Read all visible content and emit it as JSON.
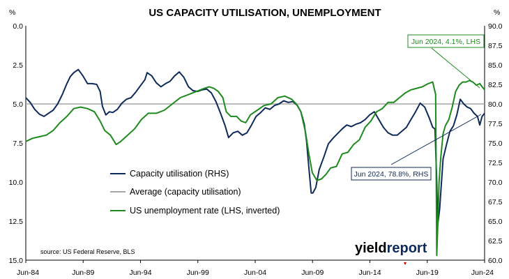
{
  "chart_data": {
    "type": "line",
    "title": "US CAPACITY UTILISATION, UNEMPLOYMENT",
    "left_axis_unit": "%",
    "right_axis_unit": "%",
    "left_axis": {
      "ylim": [
        0,
        15
      ],
      "inverted": true,
      "ticks": [
        "0.0",
        "2.5",
        "5.0",
        "7.5",
        "10.0",
        "12.5",
        "15.0"
      ]
    },
    "right_axis": {
      "ylim": [
        60,
        90
      ],
      "ticks": [
        "90.0",
        "87.5",
        "85.0",
        "82.5",
        "80.0",
        "77.5",
        "75.0",
        "72.5",
        "70.0",
        "67.5",
        "65.0",
        "62.5",
        "60.0"
      ]
    },
    "x_axis": {
      "range": [
        1984.42,
        2024.42
      ],
      "tick_labels": [
        "Jun-84",
        "Jun-89",
        "Jun-94",
        "Jun-99",
        "Jun-04",
        "Jun-09",
        "Jun-14",
        "Jun-19",
        "Jun-24"
      ]
    },
    "grid": false,
    "legend_placement": "lower-left",
    "source": "source: US Federal Reserve, BLS",
    "logo": "yieldreport",
    "series": [
      {
        "name": "Capacity utilisation (RHS)",
        "axis": "right",
        "color": "#0e2a5a",
        "x": [
          1984.42,
          1984.8,
          1985.2,
          1985.6,
          1986.0,
          1986.4,
          1986.8,
          1987.2,
          1987.6,
          1988.0,
          1988.3,
          1988.6,
          1989.0,
          1989.4,
          1989.8,
          1990.2,
          1990.6,
          1990.9,
          1991.1,
          1991.4,
          1991.7,
          1992.0,
          1992.4,
          1992.8,
          1993.2,
          1993.6,
          1994.0,
          1994.4,
          1994.8,
          1995.0,
          1995.4,
          1995.8,
          1996.2,
          1996.6,
          1997.0,
          1997.4,
          1997.8,
          1998.2,
          1998.6,
          1999.0,
          1999.4,
          1999.8,
          2000.2,
          2000.6,
          2001.0,
          2001.4,
          2001.8,
          2002.1,
          2002.5,
          2002.9,
          2003.3,
          2003.7,
          2004.1,
          2004.5,
          2004.9,
          2005.3,
          2005.7,
          2006.1,
          2006.5,
          2006.9,
          2007.3,
          2007.7,
          2008.1,
          2008.4,
          2008.7,
          2008.9,
          2009.1,
          2009.3,
          2009.45,
          2009.7,
          2010.0,
          2010.4,
          2010.8,
          2011.2,
          2011.6,
          2012.0,
          2012.4,
          2012.8,
          2013.2,
          2013.6,
          2014.0,
          2014.4,
          2014.8,
          2015.2,
          2015.6,
          2016.0,
          2016.4,
          2016.8,
          2017.2,
          2017.6,
          2018.0,
          2018.4,
          2018.8,
          2019.2,
          2019.6,
          2019.9,
          2020.1,
          2020.25,
          2020.33,
          2020.5,
          2020.8,
          2021.1,
          2021.4,
          2021.7,
          2022.0,
          2022.3,
          2022.6,
          2022.9,
          2023.2,
          2023.5,
          2023.8,
          2024.0,
          2024.2,
          2024.42
        ],
        "y": [
          80.8,
          80.2,
          79.3,
          78.7,
          78.4,
          78.8,
          79.2,
          80.0,
          81.2,
          82.6,
          83.5,
          84.0,
          84.4,
          83.6,
          82.6,
          82.6,
          82.5,
          81.6,
          79.7,
          78.6,
          79.0,
          78.9,
          79.3,
          80.1,
          80.6,
          80.8,
          81.5,
          82.3,
          83.1,
          84.0,
          83.6,
          82.7,
          82.2,
          82.6,
          82.9,
          83.6,
          84.1,
          83.4,
          82.2,
          81.7,
          81.6,
          81.8,
          81.9,
          81.4,
          80.3,
          78.8,
          77.2,
          75.7,
          76.3,
          76.5,
          76.0,
          76.3,
          77.3,
          78.4,
          78.9,
          79.5,
          79.3,
          79.8,
          80.0,
          80.4,
          80.2,
          80.3,
          79.8,
          79.0,
          77.4,
          75.2,
          71.8,
          68.6,
          68.6,
          69.3,
          71.6,
          73.2,
          74.9,
          75.6,
          76.2,
          76.8,
          77.3,
          77.1,
          77.4,
          77.6,
          78.0,
          78.6,
          79.0,
          78.0,
          77.0,
          76.3,
          76.0,
          76.0,
          76.5,
          77.0,
          78.0,
          79.0,
          80.1,
          79.6,
          78.2,
          77.0,
          76.8,
          70.0,
          64.5,
          66.5,
          73.0,
          74.8,
          76.5,
          77.2,
          78.6,
          80.6,
          80.0,
          79.6,
          79.4,
          78.8,
          78.4,
          77.3,
          78.4,
          78.8
        ]
      },
      {
        "name": "Average (capacity utilisation)",
        "axis": "right",
        "color": "#a6a6a6",
        "x": [
          1984.42,
          2024.42
        ],
        "y": [
          80.0,
          80.0
        ]
      },
      {
        "name": "US unemployment rate (LHS, inverted)",
        "axis": "left",
        "color": "#1d8a1d",
        "x": [
          1984.42,
          1985.0,
          1985.6,
          1986.2,
          1986.8,
          1987.4,
          1988.0,
          1988.6,
          1989.2,
          1989.8,
          1990.4,
          1990.9,
          1991.3,
          1991.8,
          1992.3,
          1992.7,
          1993.3,
          1993.9,
          1994.5,
          1995.1,
          1995.8,
          1996.5,
          1997.2,
          1997.9,
          1998.6,
          1999.3,
          2000.0,
          2000.4,
          2000.8,
          2001.2,
          2001.6,
          2001.9,
          2002.3,
          2002.8,
          2003.2,
          2003.6,
          2004.0,
          2004.6,
          2005.2,
          2005.8,
          2006.4,
          2007.0,
          2007.6,
          2008.0,
          2008.4,
          2008.8,
          2009.1,
          2009.4,
          2009.8,
          2010.2,
          2010.6,
          2011.0,
          2011.5,
          2012.0,
          2012.5,
          2013.0,
          2013.5,
          2014.0,
          2014.5,
          2015.0,
          2015.5,
          2016.0,
          2016.5,
          2017.0,
          2017.5,
          2018.0,
          2018.5,
          2019.0,
          2019.5,
          2019.9,
          2020.15,
          2020.25,
          2020.33,
          2020.45,
          2020.6,
          2020.8,
          2021.0,
          2021.3,
          2021.6,
          2021.9,
          2022.2,
          2022.5,
          2022.8,
          2023.1,
          2023.4,
          2023.7,
          2024.0,
          2024.2,
          2024.42
        ],
        "y": [
          7.4,
          7.2,
          7.1,
          7.0,
          6.7,
          6.2,
          5.8,
          5.3,
          5.2,
          5.3,
          5.5,
          6.1,
          6.7,
          7.0,
          7.6,
          7.4,
          7.0,
          6.6,
          6.0,
          5.6,
          5.6,
          5.4,
          5.0,
          4.6,
          4.4,
          4.2,
          4.0,
          3.9,
          4.0,
          4.2,
          4.6,
          5.5,
          5.8,
          5.8,
          6.1,
          6.2,
          5.7,
          5.4,
          5.1,
          5.0,
          4.6,
          4.5,
          4.7,
          5.0,
          5.5,
          6.8,
          8.2,
          9.4,
          9.9,
          9.8,
          9.5,
          9.1,
          9.0,
          8.2,
          8.1,
          7.6,
          7.3,
          6.5,
          6.1,
          5.5,
          5.3,
          4.9,
          4.9,
          4.6,
          4.3,
          4.1,
          4.0,
          3.9,
          3.7,
          3.6,
          4.4,
          14.7,
          13.0,
          10.0,
          8.4,
          6.9,
          6.4,
          6.0,
          5.2,
          4.2,
          3.8,
          3.6,
          3.6,
          3.5,
          3.6,
          3.8,
          3.7,
          3.9,
          4.1
        ]
      }
    ],
    "annotations": [
      {
        "text": "Jun 2024, 4.1%, LHS",
        "series": "US unemployment rate (LHS, inverted)",
        "color": "#1d8a1d"
      },
      {
        "text": "Jun 2024, 78.8%, RHS",
        "series": "Capacity utilisation (RHS)",
        "color": "#0e2a5a"
      }
    ]
  }
}
